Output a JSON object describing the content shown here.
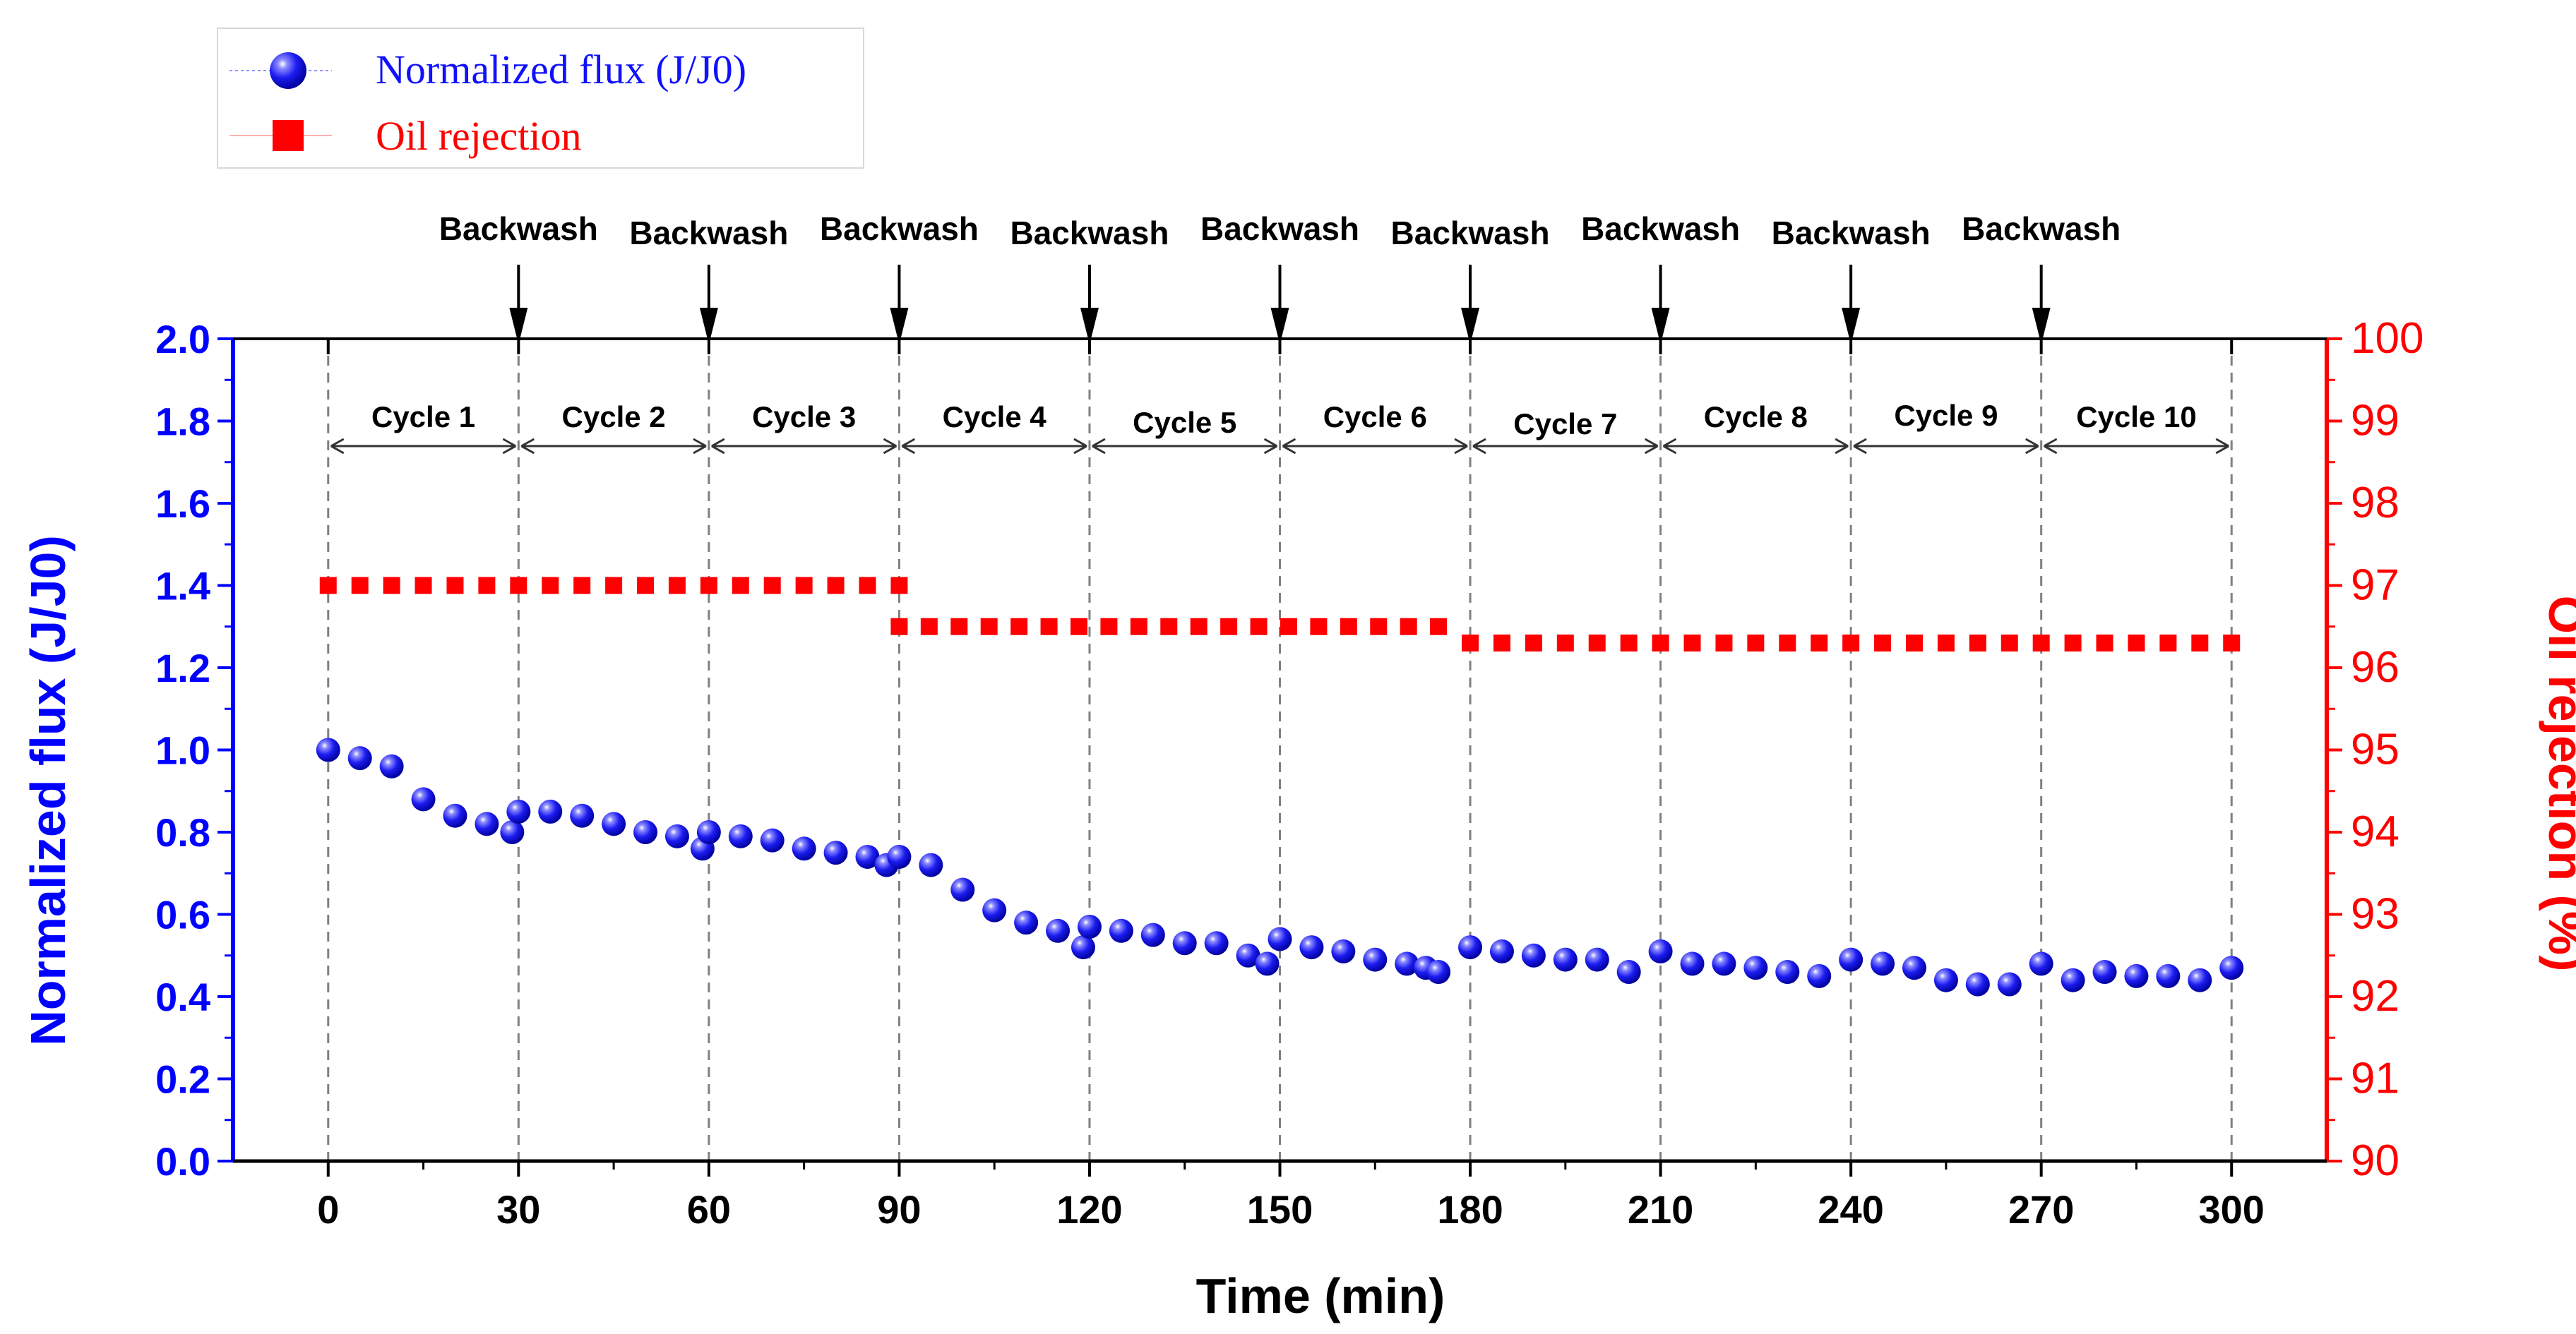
{
  "chart_data": {
    "type": "scatter",
    "xlabel": "Time (min)",
    "ylabel_left": "Normalized flux (J/J0)",
    "ylabel_right": "Oil rejection (%)",
    "xlim": [
      -15,
      315
    ],
    "ylim_left": [
      0,
      2.0
    ],
    "ylim_right": [
      90,
      100
    ],
    "xticks": [
      0,
      30,
      60,
      90,
      120,
      150,
      180,
      210,
      240,
      270,
      300
    ],
    "yticks_left": [
      "0.0",
      "0.2",
      "0.4",
      "0.6",
      "0.8",
      "1.0",
      "1.2",
      "1.4",
      "1.6",
      "1.8",
      "2.0"
    ],
    "yticks_right": [
      "90",
      "91",
      "92",
      "93",
      "94",
      "95",
      "96",
      "97",
      "98",
      "99",
      "100"
    ],
    "colors": {
      "flux": "#1010ff",
      "rejection": "#ff0000",
      "axis_left": "#0000ff",
      "axis_right": "#ff0000",
      "annotation": "#000000",
      "gridline": "#808080"
    },
    "legend": {
      "position": "top-left",
      "items": [
        {
          "label": "Normalized flux (J/J0)",
          "marker": "sphere",
          "color": "#1010ff"
        },
        {
          "label": "Oil rejection",
          "marker": "square",
          "color": "#ff0000"
        }
      ]
    },
    "cycle_boundaries": [
      0,
      30,
      60,
      90,
      120,
      150,
      180,
      210,
      240,
      270,
      300
    ],
    "backwash_times": [
      30,
      60,
      90,
      120,
      150,
      180,
      210,
      240,
      270
    ],
    "backwash_label": "Backwash",
    "cycles": [
      {
        "label": "Cycle 1",
        "start": 0,
        "end": 30
      },
      {
        "label": "Cycle 2",
        "start": 30,
        "end": 60
      },
      {
        "label": "Cycle 3",
        "start": 60,
        "end": 90
      },
      {
        "label": "Cycle 4",
        "start": 90,
        "end": 120
      },
      {
        "label": "Cycle 5",
        "start": 120,
        "end": 150
      },
      {
        "label": "Cycle 6",
        "start": 150,
        "end": 180
      },
      {
        "label": "Cycle 7",
        "start": 180,
        "end": 210
      },
      {
        "label": "Cycle 8",
        "start": 210,
        "end": 240
      },
      {
        "label": "Cycle 9",
        "start": 240,
        "end": 270
      },
      {
        "label": "Cycle 10",
        "start": 270,
        "end": 300
      }
    ],
    "series": [
      {
        "name": "Normalized flux (J/J0)",
        "axis": "left",
        "points": [
          [
            0,
            1.0
          ],
          [
            5,
            0.98
          ],
          [
            10,
            0.96
          ],
          [
            15,
            0.88
          ],
          [
            20,
            0.84
          ],
          [
            25,
            0.82
          ],
          [
            29,
            0.8
          ],
          [
            30,
            0.85
          ],
          [
            35,
            0.85
          ],
          [
            40,
            0.84
          ],
          [
            45,
            0.82
          ],
          [
            50,
            0.8
          ],
          [
            55,
            0.79
          ],
          [
            59,
            0.76
          ],
          [
            60,
            0.8
          ],
          [
            65,
            0.79
          ],
          [
            70,
            0.78
          ],
          [
            75,
            0.76
          ],
          [
            80,
            0.75
          ],
          [
            85,
            0.74
          ],
          [
            88,
            0.72
          ],
          [
            90,
            0.74
          ],
          [
            95,
            0.72
          ],
          [
            100,
            0.66
          ],
          [
            105,
            0.61
          ],
          [
            110,
            0.58
          ],
          [
            115,
            0.56
          ],
          [
            119,
            0.52
          ],
          [
            120,
            0.57
          ],
          [
            125,
            0.56
          ],
          [
            130,
            0.55
          ],
          [
            135,
            0.53
          ],
          [
            140,
            0.53
          ],
          [
            145,
            0.5
          ],
          [
            148,
            0.48
          ],
          [
            150,
            0.54
          ],
          [
            155,
            0.52
          ],
          [
            160,
            0.51
          ],
          [
            165,
            0.49
          ],
          [
            170,
            0.48
          ],
          [
            173,
            0.47
          ],
          [
            175,
            0.46
          ],
          [
            180,
            0.52
          ],
          [
            185,
            0.51
          ],
          [
            190,
            0.5
          ],
          [
            195,
            0.49
          ],
          [
            200,
            0.49
          ],
          [
            205,
            0.46
          ],
          [
            210,
            0.51
          ],
          [
            215,
            0.48
          ],
          [
            220,
            0.48
          ],
          [
            225,
            0.47
          ],
          [
            230,
            0.46
          ],
          [
            235,
            0.45
          ],
          [
            240,
            0.49
          ],
          [
            245,
            0.48
          ],
          [
            250,
            0.47
          ],
          [
            255,
            0.44
          ],
          [
            260,
            0.43
          ],
          [
            265,
            0.43
          ],
          [
            270,
            0.48
          ],
          [
            275,
            0.44
          ],
          [
            280,
            0.46
          ],
          [
            285,
            0.45
          ],
          [
            290,
            0.45
          ],
          [
            295,
            0.44
          ],
          [
            300,
            0.47
          ]
        ]
      },
      {
        "name": "Oil rejection",
        "axis": "right",
        "segments": [
          {
            "x_start": 0,
            "x_end": 90,
            "value": 97.0,
            "points": 19
          },
          {
            "x_start": 90,
            "x_end": 175,
            "value": 96.5,
            "points": 19
          },
          {
            "x_start": 180,
            "x_end": 300,
            "value": 96.3,
            "points": 25
          }
        ]
      }
    ]
  }
}
